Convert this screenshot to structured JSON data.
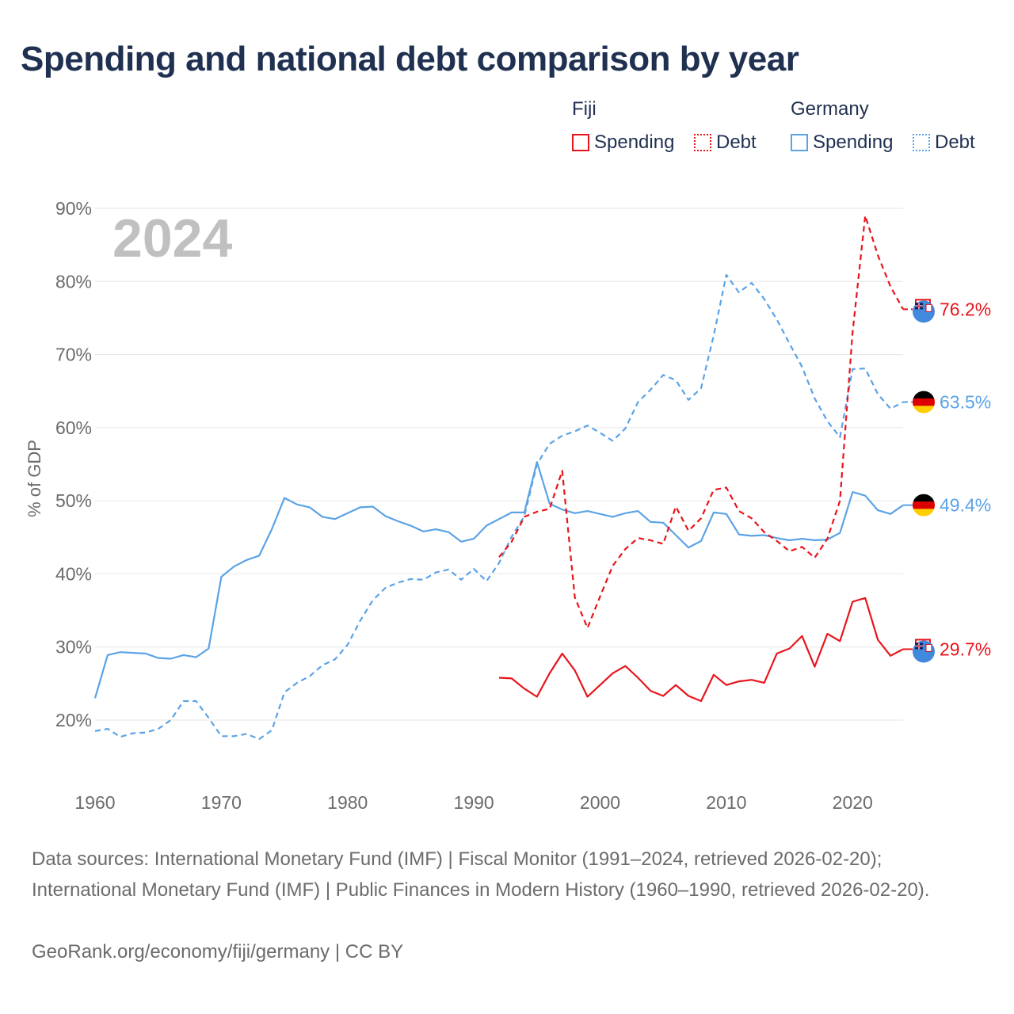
{
  "title": "Spending and national debt comparison by year",
  "legend": {
    "groups": [
      {
        "name": "Fiji",
        "items": [
          {
            "label": "Spending",
            "style": "solid",
            "color": "#e8141b"
          },
          {
            "label": "Debt",
            "style": "dotted",
            "color": "#e8141b"
          }
        ]
      },
      {
        "name": "Germany",
        "items": [
          {
            "label": "Spending",
            "style": "solid",
            "color": "#5ba3e6"
          },
          {
            "label": "Debt",
            "style": "dotted",
            "color": "#5ba3e6"
          }
        ]
      }
    ]
  },
  "colors": {
    "fiji": "#e8141b",
    "germany": "#5ba3e6",
    "grid": "#e6e6e6",
    "tick": "#6b6b6b",
    "year_watermark": "#c0c0c0"
  },
  "year_watermark": "2024",
  "footer": {
    "sources": "Data sources: International Monetary Fund (IMF) | Fiscal Monitor (1991–2024, retrieved 2026-02-20); International Monetary Fund (IMF) | Public Finances in Modern History (1960–1990, retrieved 2026-02-20).",
    "credit": "GeoRank.org/economy/fiji/germany | CC BY"
  },
  "chart_data": {
    "type": "line",
    "title": "Spending and national debt comparison by year",
    "xlabel": "",
    "ylabel": "% of GDP",
    "xlim": [
      1960,
      2024
    ],
    "ylim": [
      15,
      90
    ],
    "x_ticks": [
      1960,
      1970,
      1980,
      1990,
      2000,
      2010,
      2020
    ],
    "y_ticks": [
      20,
      30,
      40,
      50,
      60,
      70,
      80,
      90
    ],
    "y_tick_labels": [
      "20%",
      "30%",
      "40%",
      "50%",
      "60%",
      "70%",
      "80%",
      "90%"
    ],
    "x_tick_labels": [
      "1960",
      "1970",
      "1980",
      "1990",
      "2000",
      "2010",
      "2020"
    ],
    "grid": true,
    "series": [
      {
        "name": "Germany Spending",
        "country": "Germany",
        "measure": "Spending",
        "style": "solid",
        "color": "#5ba3e6",
        "end_label": "49.4%",
        "end_icon": "germany-flag-icon",
        "x": [
          1960,
          1961,
          1962,
          1963,
          1964,
          1965,
          1966,
          1967,
          1968,
          1969,
          1970,
          1971,
          1972,
          1973,
          1974,
          1975,
          1976,
          1977,
          1978,
          1979,
          1980,
          1981,
          1982,
          1983,
          1984,
          1985,
          1986,
          1987,
          1988,
          1989,
          1990,
          1991,
          1992,
          1993,
          1994,
          1995,
          1996,
          1997,
          1998,
          1999,
          2000,
          2001,
          2002,
          2003,
          2004,
          2005,
          2006,
          2007,
          2008,
          2009,
          2010,
          2011,
          2012,
          2013,
          2014,
          2015,
          2016,
          2017,
          2018,
          2019,
          2020,
          2021,
          2022,
          2023,
          2024
        ],
        "y": [
          23.0,
          28.9,
          29.3,
          29.2,
          29.1,
          28.5,
          28.4,
          28.9,
          28.6,
          29.8,
          39.6,
          41.0,
          41.9,
          42.5,
          46.1,
          50.4,
          49.5,
          49.1,
          47.8,
          47.5,
          48.3,
          49.1,
          49.2,
          47.9,
          47.2,
          46.6,
          45.8,
          46.1,
          45.7,
          44.4,
          44.8,
          46.6,
          47.5,
          48.4,
          48.4,
          55.3,
          49.6,
          48.8,
          48.3,
          48.6,
          48.2,
          47.8,
          48.3,
          48.6,
          47.1,
          47.0,
          45.3,
          43.6,
          44.5,
          48.4,
          48.2,
          45.4,
          45.2,
          45.3,
          44.9,
          44.6,
          44.8,
          44.6,
          44.7,
          45.6,
          51.2,
          50.7,
          48.7,
          48.2,
          49.4
        ]
      },
      {
        "name": "Germany Debt",
        "country": "Germany",
        "measure": "Debt",
        "style": "dashed",
        "color": "#5ba3e6",
        "end_label": "63.5%",
        "end_icon": "germany-flag-icon",
        "x": [
          1960,
          1961,
          1962,
          1963,
          1964,
          1965,
          1966,
          1967,
          1968,
          1969,
          1970,
          1971,
          1972,
          1973,
          1974,
          1975,
          1976,
          1977,
          1978,
          1979,
          1980,
          1981,
          1982,
          1983,
          1984,
          1985,
          1986,
          1987,
          1988,
          1989,
          1990,
          1991,
          1992,
          1993,
          1994,
          1995,
          1996,
          1997,
          1998,
          1999,
          2000,
          2001,
          2002,
          2003,
          2004,
          2005,
          2006,
          2007,
          2008,
          2009,
          2010,
          2011,
          2012,
          2013,
          2014,
          2015,
          2016,
          2017,
          2018,
          2019,
          2020,
          2021,
          2022,
          2023,
          2024
        ],
        "y": [
          18.5,
          18.8,
          17.7,
          18.2,
          18.3,
          18.8,
          20.0,
          22.6,
          22.6,
          20.3,
          17.8,
          17.8,
          18.1,
          17.4,
          18.6,
          23.8,
          25.1,
          26.0,
          27.5,
          28.3,
          30.3,
          33.6,
          36.4,
          38.1,
          38.8,
          39.3,
          39.2,
          40.2,
          40.6,
          39.2,
          40.7,
          39.0,
          41.5,
          45.1,
          47.9,
          55.0,
          57.8,
          58.9,
          59.5,
          60.3,
          59.3,
          58.2,
          59.9,
          63.5,
          65.2,
          67.2,
          66.5,
          63.8,
          65.4,
          72.6,
          80.9,
          78.5,
          79.8,
          77.6,
          74.8,
          71.5,
          68.3,
          64.0,
          60.9,
          58.7,
          68.0,
          68.1,
          64.6,
          62.6,
          63.5
        ]
      },
      {
        "name": "Fiji Spending",
        "country": "Fiji",
        "measure": "Spending",
        "style": "solid",
        "color": "#e8141b",
        "end_label": "29.7%",
        "end_icon": "fiji-flag-icon",
        "x": [
          1992,
          1993,
          1994,
          1995,
          1996,
          1997,
          1998,
          1999,
          2000,
          2001,
          2002,
          2003,
          2004,
          2005,
          2006,
          2007,
          2008,
          2009,
          2010,
          2011,
          2012,
          2013,
          2014,
          2015,
          2016,
          2017,
          2018,
          2019,
          2020,
          2021,
          2022,
          2023,
          2024
        ],
        "y": [
          25.8,
          25.7,
          24.3,
          23.2,
          26.4,
          29.1,
          26.8,
          23.2,
          24.8,
          26.4,
          27.4,
          25.8,
          24.0,
          23.3,
          24.8,
          23.3,
          22.6,
          26.2,
          24.8,
          25.3,
          25.5,
          25.1,
          29.1,
          29.8,
          31.5,
          27.3,
          31.8,
          30.8,
          36.2,
          36.7,
          31.0,
          28.8,
          29.7
        ]
      },
      {
        "name": "Fiji Debt",
        "country": "Fiji",
        "measure": "Debt",
        "style": "dashed",
        "color": "#e8141b",
        "end_label": "76.2%",
        "end_icon": "fiji-flag-icon",
        "x": [
          1992,
          1993,
          1994,
          1995,
          1996,
          1997,
          1998,
          1999,
          2000,
          2001,
          2002,
          2003,
          2004,
          2005,
          2006,
          2007,
          2008,
          2009,
          2010,
          2011,
          2012,
          2013,
          2014,
          2015,
          2016,
          2017,
          2018,
          2019,
          2020,
          2021,
          2022,
          2023,
          2024
        ],
        "y": [
          42.3,
          44.4,
          47.8,
          48.5,
          48.9,
          54.1,
          36.8,
          32.6,
          36.9,
          41.1,
          43.4,
          44.9,
          44.6,
          44.1,
          49.2,
          45.9,
          47.6,
          51.5,
          51.8,
          48.6,
          47.6,
          45.7,
          44.5,
          43.1,
          43.7,
          42.2,
          44.8,
          50.0,
          73.1,
          89.0,
          83.6,
          79.3,
          76.2
        ]
      }
    ]
  }
}
